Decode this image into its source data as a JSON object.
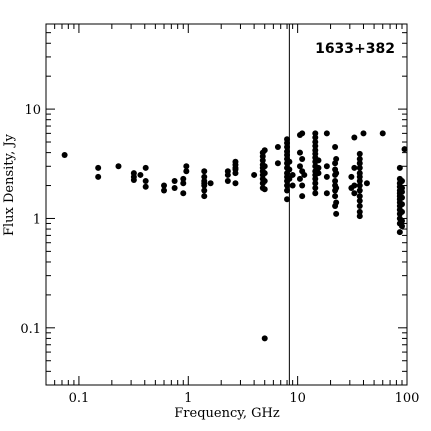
{
  "chart_data": {
    "type": "scatter",
    "title": "1633+382",
    "xlabel": "Frequency, GHz",
    "ylabel": "Flux Density, Jy",
    "xscale": "log",
    "yscale": "log",
    "xlim": [
      0.05,
      100
    ],
    "ylim": [
      0.03,
      60
    ],
    "x_ticks": [
      {
        "value": 0.1,
        "label": "0.1"
      },
      {
        "value": 1,
        "label": "1"
      },
      {
        "value": 10,
        "label": "10"
      },
      {
        "value": 100,
        "label": "100"
      }
    ],
    "y_ticks": [
      {
        "value": 0.1,
        "label": "0.1"
      },
      {
        "value": 1,
        "label": "1"
      },
      {
        "value": 10,
        "label": "10"
      }
    ],
    "vline": {
      "x": 8.4
    },
    "grid": false,
    "marker_color": "#000000",
    "points": [
      {
        "x": 0.074,
        "y": 3.8
      },
      {
        "x": 0.15,
        "y": 2.9
      },
      {
        "x": 0.15,
        "y": 2.4
      },
      {
        "x": 0.23,
        "y": 3.0
      },
      {
        "x": 0.318,
        "y": 2.6
      },
      {
        "x": 0.318,
        "y": 2.4
      },
      {
        "x": 0.318,
        "y": 2.25
      },
      {
        "x": 0.365,
        "y": 2.5
      },
      {
        "x": 0.408,
        "y": 2.9
      },
      {
        "x": 0.408,
        "y": 2.2
      },
      {
        "x": 0.408,
        "y": 1.95
      },
      {
        "x": 0.6,
        "y": 2.0
      },
      {
        "x": 0.6,
        "y": 1.8
      },
      {
        "x": 0.75,
        "y": 2.2
      },
      {
        "x": 0.75,
        "y": 1.9
      },
      {
        "x": 0.9,
        "y": 2.3
      },
      {
        "x": 0.9,
        "y": 2.1
      },
      {
        "x": 0.9,
        "y": 1.7
      },
      {
        "x": 0.96,
        "y": 3.0
      },
      {
        "x": 0.96,
        "y": 2.7
      },
      {
        "x": 1.4,
        "y": 2.7
      },
      {
        "x": 1.4,
        "y": 2.4
      },
      {
        "x": 1.4,
        "y": 2.2
      },
      {
        "x": 1.4,
        "y": 2.1
      },
      {
        "x": 1.4,
        "y": 2.0
      },
      {
        "x": 1.4,
        "y": 1.8
      },
      {
        "x": 1.4,
        "y": 1.6
      },
      {
        "x": 1.6,
        "y": 2.1
      },
      {
        "x": 2.3,
        "y": 2.7
      },
      {
        "x": 2.3,
        "y": 2.5
      },
      {
        "x": 2.3,
        "y": 2.2
      },
      {
        "x": 2.7,
        "y": 3.3
      },
      {
        "x": 2.7,
        "y": 3.1
      },
      {
        "x": 2.7,
        "y": 2.9
      },
      {
        "x": 2.7,
        "y": 2.8
      },
      {
        "x": 2.7,
        "y": 2.6
      },
      {
        "x": 2.7,
        "y": 2.1
      },
      {
        "x": 4.0,
        "y": 2.5
      },
      {
        "x": 4.8,
        "y": 4.0
      },
      {
        "x": 4.8,
        "y": 3.7
      },
      {
        "x": 4.8,
        "y": 3.4
      },
      {
        "x": 4.8,
        "y": 3.1
      },
      {
        "x": 4.8,
        "y": 2.9
      },
      {
        "x": 4.8,
        "y": 2.7
      },
      {
        "x": 4.8,
        "y": 2.5
      },
      {
        "x": 4.8,
        "y": 2.3
      },
      {
        "x": 4.8,
        "y": 2.1
      },
      {
        "x": 4.8,
        "y": 1.9
      },
      {
        "x": 5.0,
        "y": 4.2
      },
      {
        "x": 5.0,
        "y": 3.0
      },
      {
        "x": 5.0,
        "y": 2.6
      },
      {
        "x": 5.0,
        "y": 2.2
      },
      {
        "x": 5.0,
        "y": 1.85
      },
      {
        "x": 5.0,
        "y": 0.08
      },
      {
        "x": 6.6,
        "y": 4.5
      },
      {
        "x": 6.6,
        "y": 3.2
      },
      {
        "x": 8.0,
        "y": 5.3
      },
      {
        "x": 8.0,
        "y": 4.9
      },
      {
        "x": 8.0,
        "y": 4.5
      },
      {
        "x": 8.0,
        "y": 4.1
      },
      {
        "x": 8.0,
        "y": 3.8
      },
      {
        "x": 8.0,
        "y": 3.5
      },
      {
        "x": 8.0,
        "y": 3.2
      },
      {
        "x": 8.0,
        "y": 2.9
      },
      {
        "x": 8.0,
        "y": 2.6
      },
      {
        "x": 8.0,
        "y": 2.4
      },
      {
        "x": 8.0,
        "y": 2.2
      },
      {
        "x": 8.0,
        "y": 2.0
      },
      {
        "x": 8.0,
        "y": 1.8
      },
      {
        "x": 8.0,
        "y": 1.5
      },
      {
        "x": 8.4,
        "y": 3.3
      },
      {
        "x": 8.4,
        "y": 2.8
      },
      {
        "x": 8.4,
        "y": 2.3
      },
      {
        "x": 9.0,
        "y": 2.5
      },
      {
        "x": 9.0,
        "y": 2.0
      },
      {
        "x": 10.5,
        "y": 5.8
      },
      {
        "x": 10.5,
        "y": 4.0
      },
      {
        "x": 10.5,
        "y": 3.0
      },
      {
        "x": 10.5,
        "y": 2.3
      },
      {
        "x": 11.0,
        "y": 6.0
      },
      {
        "x": 11.0,
        "y": 3.5
      },
      {
        "x": 11.0,
        "y": 2.7
      },
      {
        "x": 11.0,
        "y": 2.0
      },
      {
        "x": 11.0,
        "y": 1.6
      },
      {
        "x": 11.5,
        "y": 2.5
      },
      {
        "x": 14.5,
        "y": 6.0
      },
      {
        "x": 14.5,
        "y": 5.5
      },
      {
        "x": 14.5,
        "y": 5.0
      },
      {
        "x": 14.5,
        "y": 4.6
      },
      {
        "x": 14.5,
        "y": 4.2
      },
      {
        "x": 14.5,
        "y": 3.9
      },
      {
        "x": 14.5,
        "y": 3.6
      },
      {
        "x": 14.5,
        "y": 3.3
      },
      {
        "x": 14.5,
        "y": 3.0
      },
      {
        "x": 14.5,
        "y": 2.7
      },
      {
        "x": 14.5,
        "y": 2.5
      },
      {
        "x": 14.5,
        "y": 2.3
      },
      {
        "x": 14.5,
        "y": 2.1
      },
      {
        "x": 14.5,
        "y": 1.9
      },
      {
        "x": 14.5,
        "y": 1.7
      },
      {
        "x": 15.5,
        "y": 3.4
      },
      {
        "x": 15.5,
        "y": 2.9
      },
      {
        "x": 15.5,
        "y": 2.6
      },
      {
        "x": 18.5,
        "y": 6.0
      },
      {
        "x": 18.5,
        "y": 3.0
      },
      {
        "x": 18.5,
        "y": 2.4
      },
      {
        "x": 18.5,
        "y": 1.7
      },
      {
        "x": 22.0,
        "y": 4.5
      },
      {
        "x": 22.0,
        "y": 3.2
      },
      {
        "x": 22.0,
        "y": 2.8
      },
      {
        "x": 22.0,
        "y": 2.5
      },
      {
        "x": 22.0,
        "y": 2.2
      },
      {
        "x": 22.0,
        "y": 2.0
      },
      {
        "x": 22.0,
        "y": 1.8
      },
      {
        "x": 22.0,
        "y": 1.6
      },
      {
        "x": 22.0,
        "y": 1.3
      },
      {
        "x": 22.5,
        "y": 3.5
      },
      {
        "x": 22.5,
        "y": 2.6
      },
      {
        "x": 22.5,
        "y": 1.9
      },
      {
        "x": 22.5,
        "y": 1.4
      },
      {
        "x": 22.5,
        "y": 1.1
      },
      {
        "x": 31.0,
        "y": 2.4
      },
      {
        "x": 31.0,
        "y": 1.9
      },
      {
        "x": 33.0,
        "y": 5.5
      },
      {
        "x": 33.0,
        "y": 2.9
      },
      {
        "x": 33.0,
        "y": 2.0
      },
      {
        "x": 33.0,
        "y": 1.7
      },
      {
        "x": 37.0,
        "y": 3.9
      },
      {
        "x": 37.0,
        "y": 3.5
      },
      {
        "x": 37.0,
        "y": 3.2
      },
      {
        "x": 37.0,
        "y": 2.9
      },
      {
        "x": 37.0,
        "y": 2.6
      },
      {
        "x": 37.0,
        "y": 2.4
      },
      {
        "x": 37.0,
        "y": 2.2
      },
      {
        "x": 37.0,
        "y": 2.0
      },
      {
        "x": 37.0,
        "y": 1.8
      },
      {
        "x": 37.0,
        "y": 1.6
      },
      {
        "x": 37.0,
        "y": 1.45
      },
      {
        "x": 37.0,
        "y": 1.3
      },
      {
        "x": 37.0,
        "y": 1.15
      },
      {
        "x": 37.0,
        "y": 1.05
      },
      {
        "x": 40.0,
        "y": 6.0
      },
      {
        "x": 43.0,
        "y": 2.1
      },
      {
        "x": 60.0,
        "y": 6.0
      },
      {
        "x": 86.0,
        "y": 2.9
      },
      {
        "x": 86.0,
        "y": 2.3
      },
      {
        "x": 86.0,
        "y": 2.1
      },
      {
        "x": 86.0,
        "y": 1.95
      },
      {
        "x": 86.0,
        "y": 1.8
      },
      {
        "x": 86.0,
        "y": 1.7
      },
      {
        "x": 86.0,
        "y": 1.6
      },
      {
        "x": 86.0,
        "y": 1.5
      },
      {
        "x": 86.0,
        "y": 1.4
      },
      {
        "x": 86.0,
        "y": 1.3
      },
      {
        "x": 86.0,
        "y": 1.2
      },
      {
        "x": 86.0,
        "y": 1.1
      },
      {
        "x": 86.0,
        "y": 1.0
      },
      {
        "x": 86.0,
        "y": 0.9
      },
      {
        "x": 86.0,
        "y": 0.75
      },
      {
        "x": 90.0,
        "y": 2.2
      },
      {
        "x": 90.0,
        "y": 1.9
      },
      {
        "x": 90.0,
        "y": 1.75
      },
      {
        "x": 90.0,
        "y": 1.55
      },
      {
        "x": 90.0,
        "y": 1.35
      },
      {
        "x": 90.0,
        "y": 1.15
      },
      {
        "x": 90.0,
        "y": 0.95
      },
      {
        "x": 90.0,
        "y": 0.85
      },
      {
        "x": 95.0,
        "y": 4.3
      }
    ]
  }
}
